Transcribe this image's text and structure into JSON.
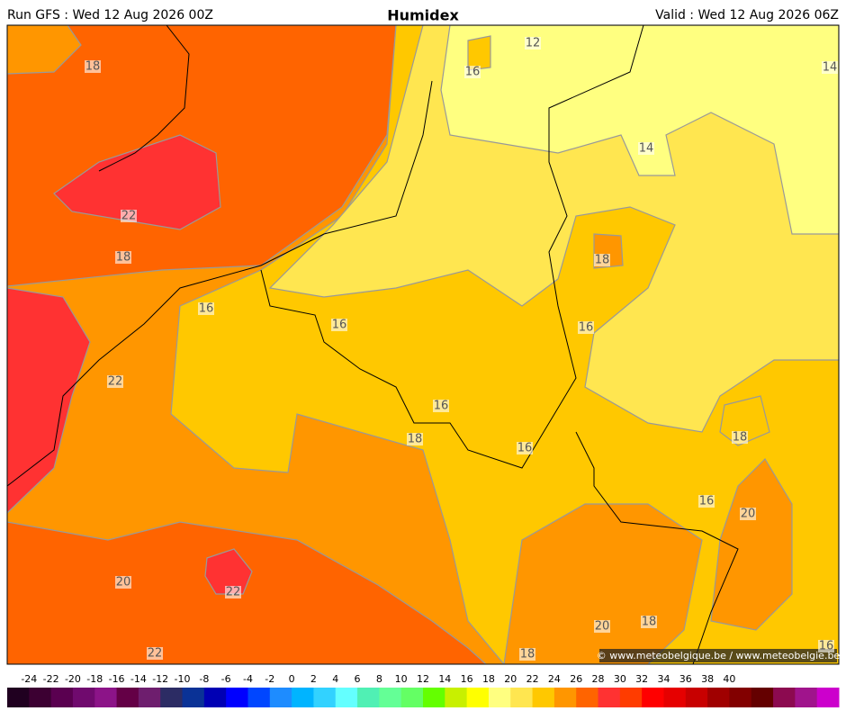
{
  "header": {
    "left": "Run GFS : Wed 12 Aug 2026 00Z",
    "title": "Humidex",
    "right": "Valid : Wed 12 Aug 2026 06Z"
  },
  "contour_labels": [
    18,
    16,
    12,
    14,
    14,
    22,
    18,
    18,
    16,
    16,
    16,
    22,
    16,
    18,
    18,
    16,
    16,
    20,
    20,
    22,
    18,
    20,
    22,
    18,
    16
  ],
  "colorbar": {
    "labels": [
      -24,
      -22,
      -20,
      -18,
      -16,
      -14,
      -12,
      -10,
      -8,
      -6,
      -4,
      -2,
      0,
      2,
      4,
      6,
      8,
      10,
      12,
      14,
      16,
      18,
      20,
      22,
      24,
      26,
      28,
      30,
      32,
      34,
      36,
      38,
      40
    ],
    "colors": [
      "#200020",
      "#3c0032",
      "#5a0050",
      "#700a6e",
      "#8c1488",
      "#640046",
      "#6e1e6e",
      "#2c2c64",
      "#0a3296",
      "#0000b4",
      "#0000ff",
      "#0046ff",
      "#1e8cff",
      "#00b4ff",
      "#32d2ff",
      "#64ffff",
      "#50f0b4",
      "#64ff96",
      "#64ff64",
      "#64ff00",
      "#c8f000",
      "#ffff00",
      "#ffff80",
      "#ffe650",
      "#ffc800",
      "#ff9600",
      "#ff6400",
      "#ff3232",
      "#ff3c00",
      "#ff0000",
      "#e60000",
      "#c80000",
      "#a00000",
      "#820000",
      "#640000",
      "#8c0a50",
      "#a0148c",
      "#cc00cc"
    ]
  },
  "copyright": "© www.meteobelgique.be / www.meteobelgie.be"
}
